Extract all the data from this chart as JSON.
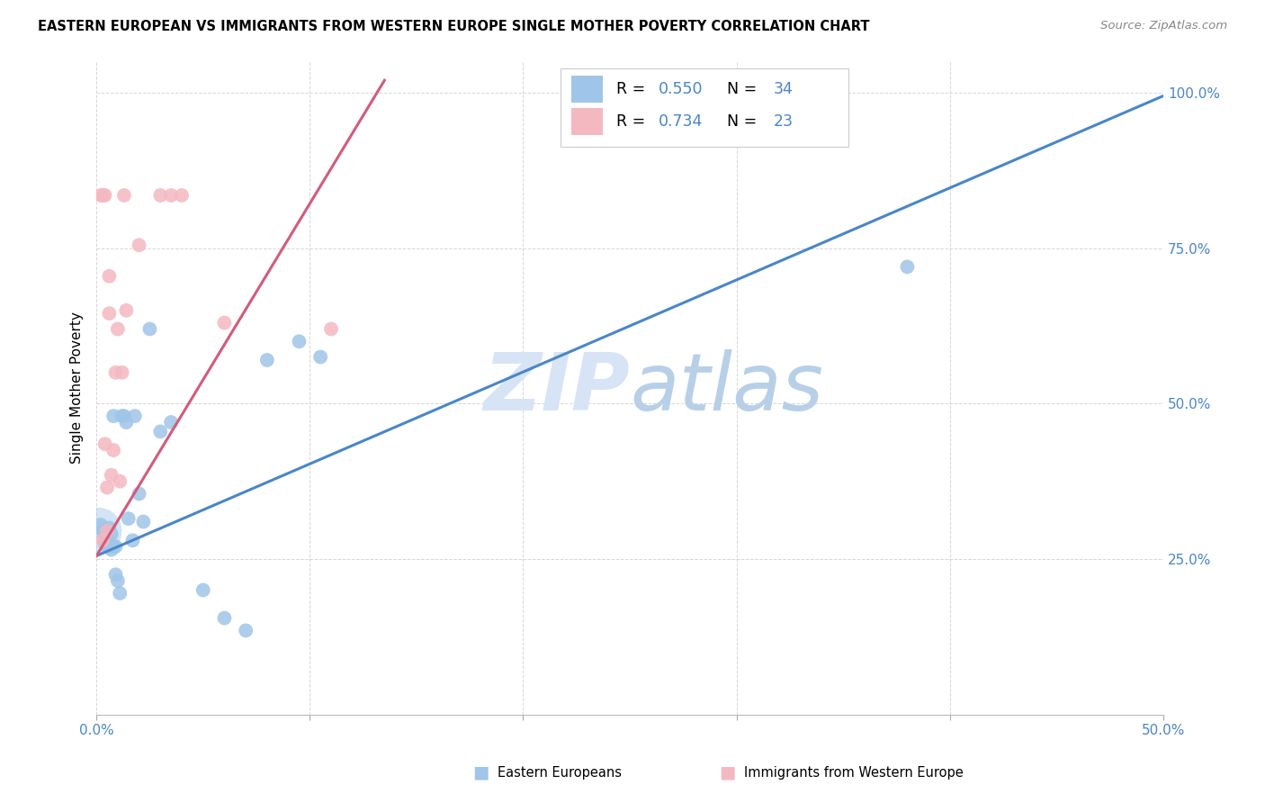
{
  "title": "EASTERN EUROPEAN VS IMMIGRANTS FROM WESTERN EUROPE SINGLE MOTHER POVERTY CORRELATION CHART",
  "source": "Source: ZipAtlas.com",
  "ylabel": "Single Mother Poverty",
  "xlim": [
    0.0,
    0.5
  ],
  "ylim": [
    0.0,
    1.05
  ],
  "blue_R": 0.55,
  "blue_N": 34,
  "pink_R": 0.734,
  "pink_N": 23,
  "blue_color": "#9fc5e8",
  "pink_color": "#f4b8c1",
  "blue_line_color": "#4a86c8",
  "pink_line_color": "#d45a7a",
  "text_blue_color": "#4a86c8",
  "legend_label_blue": "Eastern Europeans",
  "legend_label_pink": "Immigrants from Western Europe",
  "watermark_color": "#d6e4f5",
  "blue_x": [
    0.002,
    0.003,
    0.004,
    0.004,
    0.005,
    0.005,
    0.006,
    0.006,
    0.007,
    0.007,
    0.008,
    0.008,
    0.009,
    0.009,
    0.01,
    0.011,
    0.012,
    0.013,
    0.014,
    0.015,
    0.017,
    0.018,
    0.02,
    0.022,
    0.025,
    0.03,
    0.035,
    0.05,
    0.06,
    0.07,
    0.08,
    0.095,
    0.105,
    0.38
  ],
  "blue_y": [
    0.305,
    0.295,
    0.29,
    0.275,
    0.285,
    0.27,
    0.3,
    0.27,
    0.265,
    0.29,
    0.48,
    0.27,
    0.225,
    0.27,
    0.215,
    0.195,
    0.48,
    0.48,
    0.47,
    0.315,
    0.28,
    0.48,
    0.355,
    0.31,
    0.62,
    0.455,
    0.47,
    0.2,
    0.155,
    0.135,
    0.57,
    0.6,
    0.575,
    0.72
  ],
  "pink_x": [
    0.002,
    0.003,
    0.003,
    0.004,
    0.004,
    0.005,
    0.005,
    0.006,
    0.006,
    0.007,
    0.008,
    0.009,
    0.01,
    0.011,
    0.012,
    0.013,
    0.014,
    0.02,
    0.03,
    0.035,
    0.04,
    0.06,
    0.11
  ],
  "pink_y": [
    0.835,
    0.835,
    0.28,
    0.835,
    0.435,
    0.295,
    0.365,
    0.645,
    0.705,
    0.385,
    0.425,
    0.55,
    0.62,
    0.375,
    0.55,
    0.835,
    0.65,
    0.755,
    0.835,
    0.835,
    0.835,
    0.63,
    0.62
  ],
  "blue_line_x": [
    0.0,
    0.5
  ],
  "blue_line_y": [
    0.255,
    0.995
  ],
  "pink_line_x": [
    0.0,
    0.135
  ],
  "pink_line_y": [
    0.255,
    1.02
  ]
}
